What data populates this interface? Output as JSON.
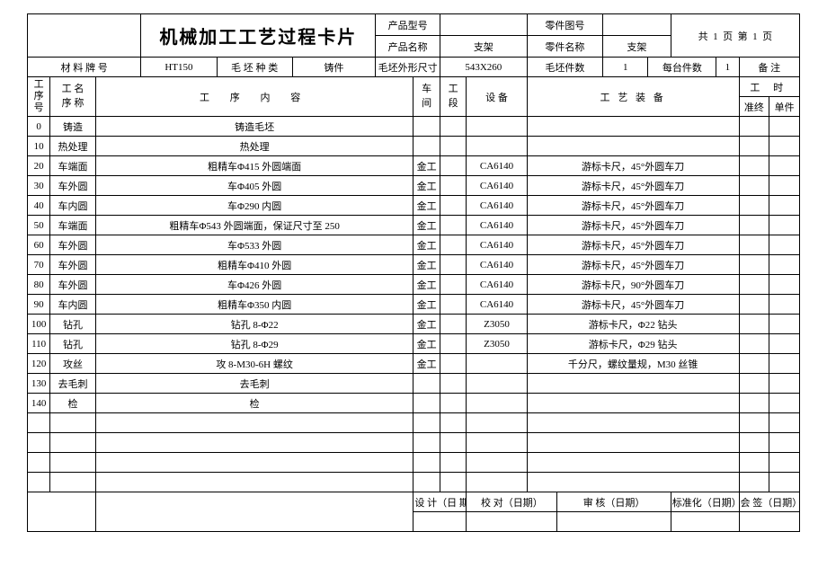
{
  "title": "机械加工工艺过程卡片",
  "header": {
    "product_model_label": "产品型号",
    "product_model": "",
    "part_drawing_label": "零件图号",
    "part_drawing": "",
    "product_name_label": "产品名称",
    "product_name": "支架",
    "part_name_label": "零件名称",
    "part_name": "支架",
    "page_info_prefix": "共",
    "page_total": "1",
    "page_mid": "页",
    "page_mid2": "第",
    "page_current": "1",
    "page_suffix": "页"
  },
  "material": {
    "material_label": "材 料 牌 号",
    "material_value": "HT150",
    "blank_type_label": "毛 坯 种 类",
    "blank_type": "铸件",
    "blank_size_label": "毛坯外形尺寸",
    "blank_size": "543X260",
    "blank_qty_label": "毛坯件数",
    "blank_qty": "1",
    "per_set_label": "每台件数",
    "per_set": "1",
    "remark_label": "备 注"
  },
  "columns": {
    "seq_label1": "工",
    "seq_label2": "序",
    "seq_label3": "号",
    "name_label1": "工 名",
    "name_label2": "序 称",
    "content_label": "工    序    内    容",
    "workshop1": "车",
    "workshop2": "间",
    "section1": "工",
    "section2": "段",
    "equipment_label": "设  备",
    "fixture_label": "工   艺   装   备",
    "time_label": "工     时",
    "time_prep": "准终",
    "time_unit": "单件"
  },
  "rows": [
    {
      "no": "0",
      "name": "铸造",
      "content": "铸造毛坯",
      "ws": "",
      "sec": "",
      "equip": "",
      "fix": ""
    },
    {
      "no": "10",
      "name": "热处理",
      "content": "热处理",
      "ws": "",
      "sec": "",
      "equip": "",
      "fix": ""
    },
    {
      "no": "20",
      "name": "车端面",
      "content": "粗精车Φ415 外圆端面",
      "ws": "金工",
      "sec": "",
      "equip": "CA6140",
      "fix": "游标卡尺，45°外圆车刀"
    },
    {
      "no": "30",
      "name": "车外圆",
      "content": "车Φ405 外圆",
      "ws": "金工",
      "sec": "",
      "equip": "CA6140",
      "fix": "游标卡尺，45°外圆车刀"
    },
    {
      "no": "40",
      "name": "车内圆",
      "content": "车Φ290 内圆",
      "ws": "金工",
      "sec": "",
      "equip": "CA6140",
      "fix": "游标卡尺，45°外圆车刀"
    },
    {
      "no": "50",
      "name": "车端面",
      "content": "粗精车Φ543 外圆端面，保证尺寸至 250",
      "ws": "金工",
      "sec": "",
      "equip": "CA6140",
      "fix": "游标卡尺，45°外圆车刀"
    },
    {
      "no": "60",
      "name": "车外圆",
      "content": "车Φ533 外圆",
      "ws": "金工",
      "sec": "",
      "equip": "CA6140",
      "fix": "游标卡尺，45°外圆车刀"
    },
    {
      "no": "70",
      "name": "车外圆",
      "content": "粗精车Φ410 外圆",
      "ws": "金工",
      "sec": "",
      "equip": "CA6140",
      "fix": "游标卡尺，45°外圆车刀"
    },
    {
      "no": "80",
      "name": "车外圆",
      "content": "车Φ426 外圆",
      "ws": "金工",
      "sec": "",
      "equip": "CA6140",
      "fix": "游标卡尺，90°外圆车刀"
    },
    {
      "no": "90",
      "name": "车内圆",
      "content": "粗精车Φ350 内圆",
      "ws": "金工",
      "sec": "",
      "equip": "CA6140",
      "fix": "游标卡尺，45°外圆车刀"
    },
    {
      "no": "100",
      "name": "钻孔",
      "content": "钻孔 8-Φ22",
      "ws": "金工",
      "sec": "",
      "equip": "Z3050",
      "fix": "游标卡尺，Φ22 钻头"
    },
    {
      "no": "110",
      "name": "钻孔",
      "content": "钻孔 8-Φ29",
      "ws": "金工",
      "sec": "",
      "equip": "Z3050",
      "fix": "游标卡尺，Φ29 钻头"
    },
    {
      "no": "120",
      "name": "攻丝",
      "content": "攻 8-M30-6H 螺纹",
      "ws": "金工",
      "sec": "",
      "equip": "",
      "fix": "千分尺，螺纹量规，M30 丝锥"
    },
    {
      "no": "130",
      "name": "去毛刺",
      "content": "去毛刺",
      "ws": "",
      "sec": "",
      "equip": "",
      "fix": ""
    },
    {
      "no": "140",
      "name": "检",
      "content": "检",
      "ws": "",
      "sec": "",
      "equip": "",
      "fix": ""
    },
    {
      "no": "",
      "name": "",
      "content": "",
      "ws": "",
      "sec": "",
      "equip": "",
      "fix": ""
    },
    {
      "no": "",
      "name": "",
      "content": "",
      "ws": "",
      "sec": "",
      "equip": "",
      "fix": ""
    },
    {
      "no": "",
      "name": "",
      "content": "",
      "ws": "",
      "sec": "",
      "equip": "",
      "fix": ""
    },
    {
      "no": "",
      "name": "",
      "content": "",
      "ws": "",
      "sec": "",
      "equip": "",
      "fix": ""
    }
  ],
  "footer": {
    "design": "设 计（日 期）",
    "proof": "校  对（日期）",
    "review": "审  核（日期）",
    "standard": "标准化（日期）",
    "sign": "会  签（日期）"
  }
}
